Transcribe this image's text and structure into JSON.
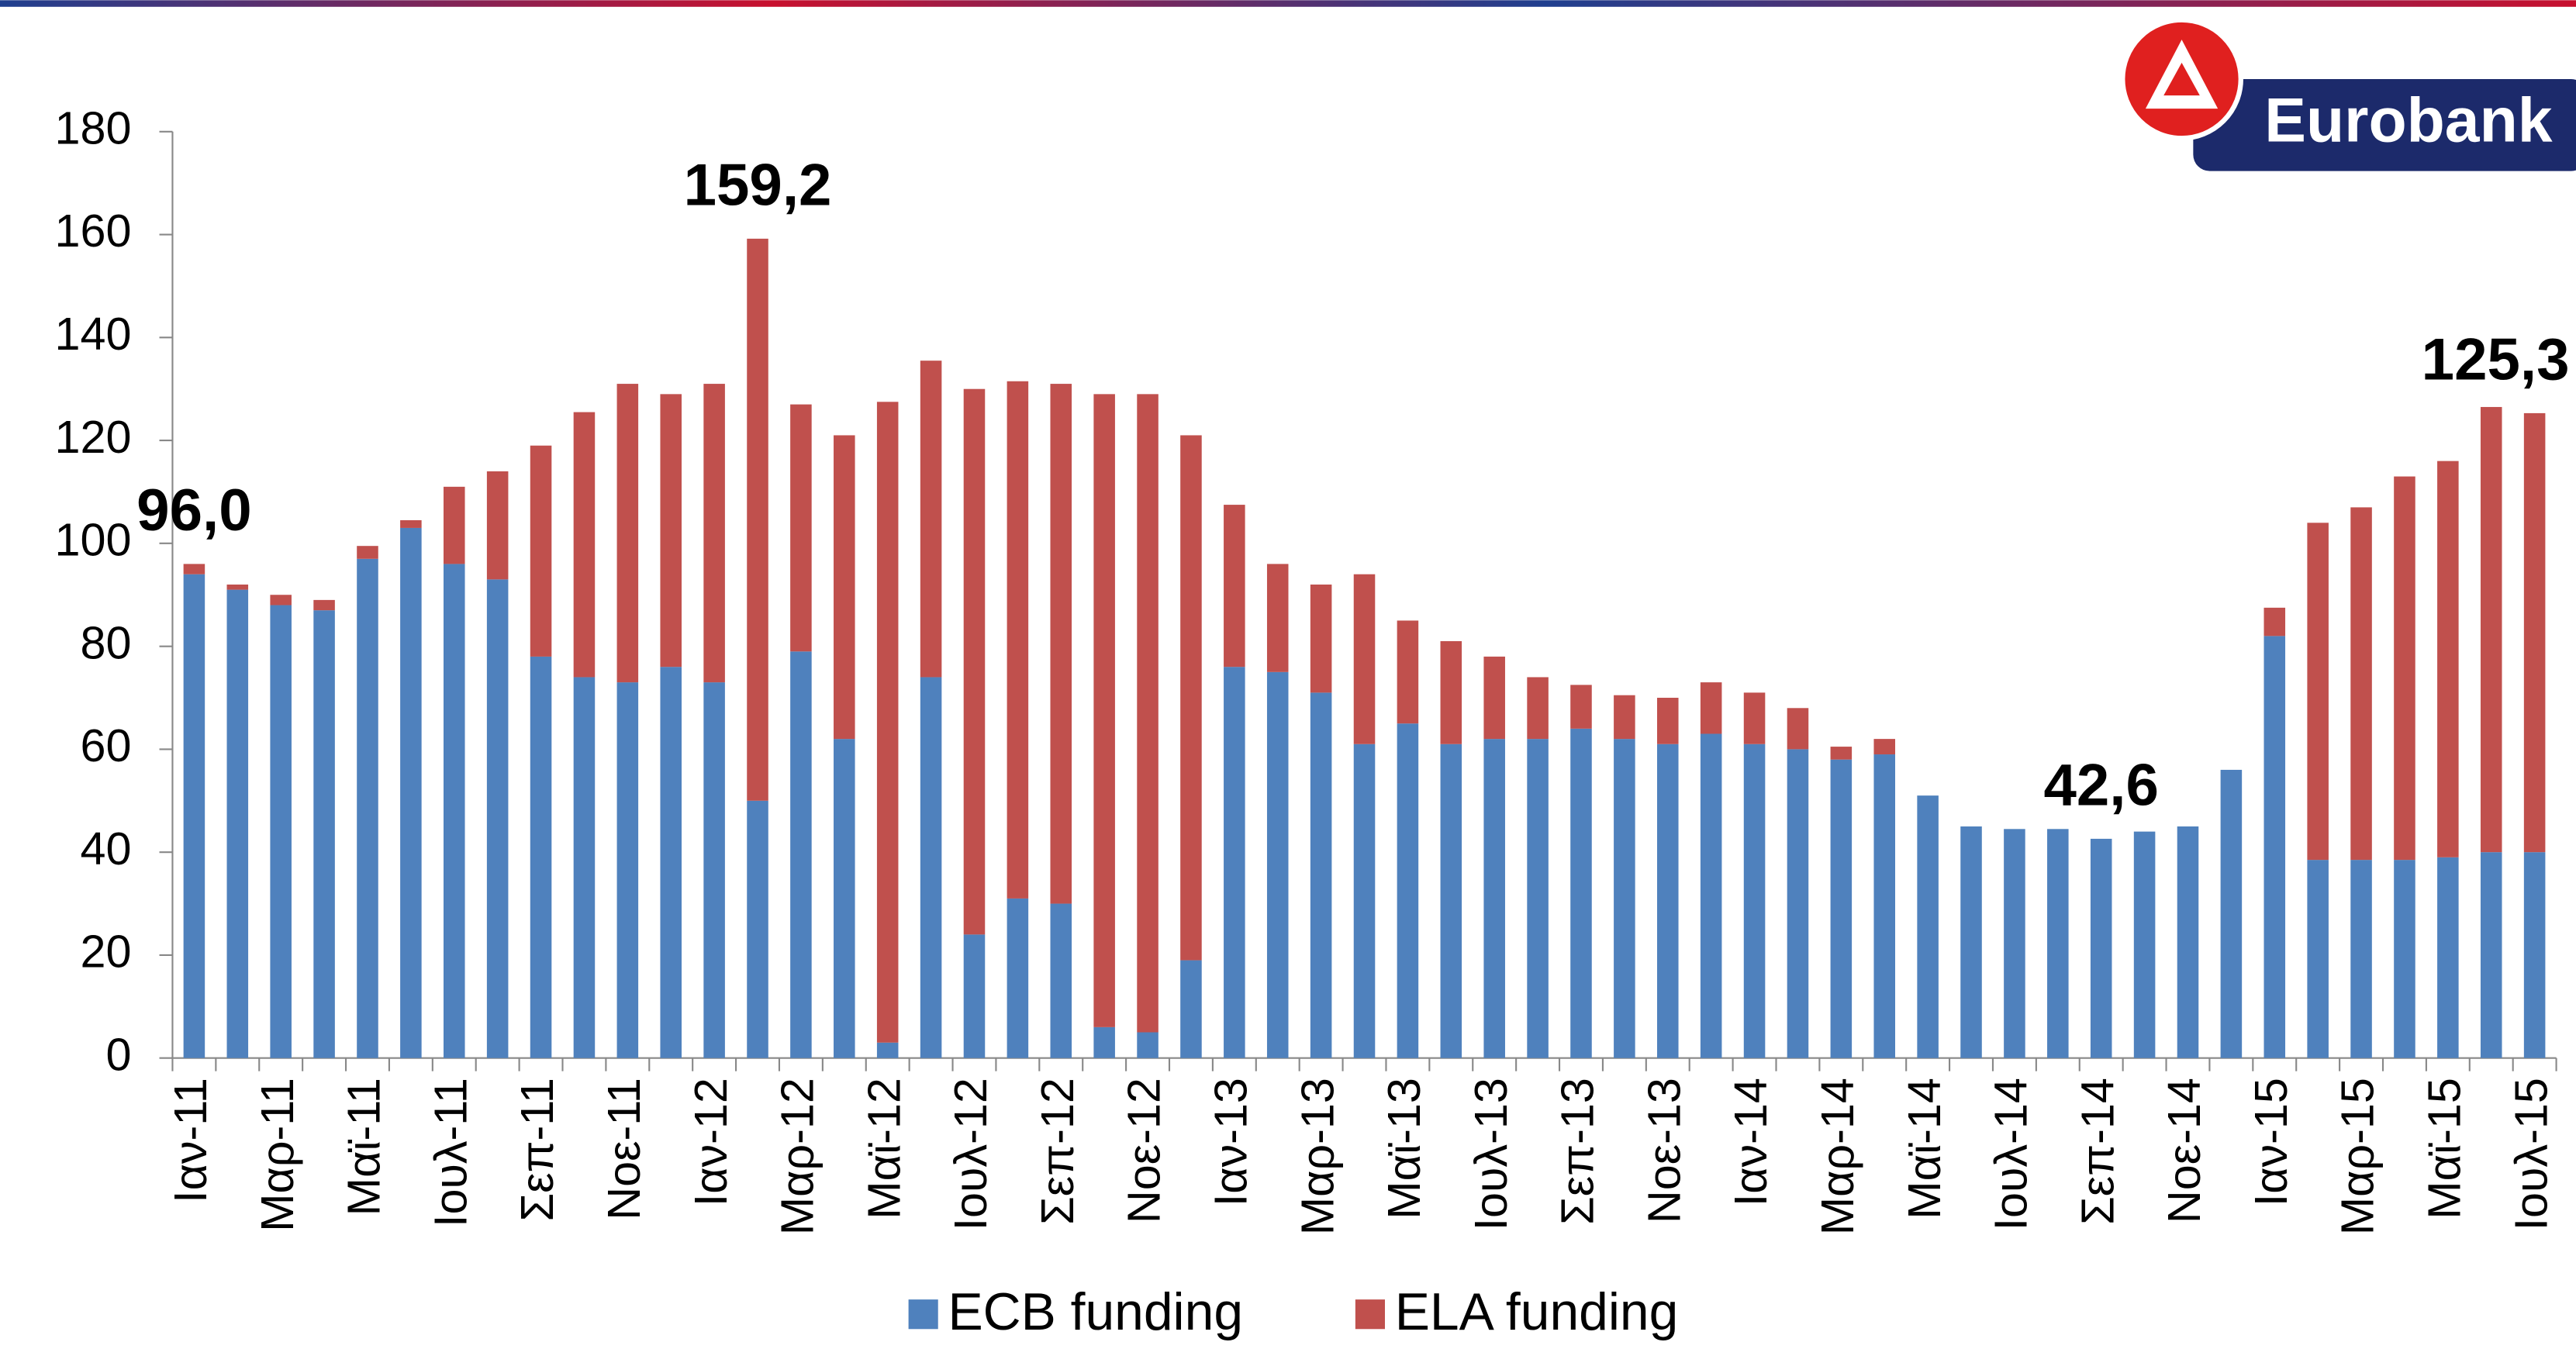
{
  "logo": {
    "text": "Eurobank"
  },
  "chart_data": {
    "type": "stacked_bar",
    "categories": [
      "Ιαν-11",
      null,
      "Μαρ-11",
      null,
      "Μαϊ-11",
      null,
      "Ιουλ-11",
      null,
      "Σεπ-11",
      null,
      "Νοε-11",
      null,
      "Ιαν-12",
      null,
      "Μαρ-12",
      null,
      "Μαϊ-12",
      null,
      "Ιουλ-12",
      null,
      "Σεπ-12",
      null,
      "Νοε-12",
      null,
      "Ιαν-13",
      null,
      "Μαρ-13",
      null,
      "Μαϊ-13",
      null,
      "Ιουλ-13",
      null,
      "Σεπ-13",
      null,
      "Νοε-13",
      null,
      "Ιαν-14",
      null,
      "Μαρ-14",
      null,
      "Μαϊ-14",
      null,
      "Ιουλ-14",
      null,
      "Σεπ-14",
      null,
      "Νοε-14",
      null,
      "Ιαν-15",
      null,
      "Μαρ-15",
      null,
      "Μαϊ-15",
      null,
      "Ιουλ-15"
    ],
    "series": [
      {
        "name": "ECB funding",
        "color": "#4f81bd",
        "values": [
          94,
          91,
          88,
          87,
          97,
          103,
          96,
          93,
          78,
          74,
          73,
          76,
          73,
          50,
          79,
          62,
          3,
          74,
          24,
          31,
          30,
          6,
          5,
          19,
          76,
          75,
          71,
          61,
          65,
          61,
          62,
          62,
          64,
          62,
          61,
          63,
          61,
          60,
          58,
          59,
          51,
          45,
          44.5,
          44.5,
          42.6,
          44,
          45,
          56,
          82,
          38.5,
          38.5,
          38.5,
          39,
          40,
          40
        ]
      },
      {
        "name": "ELA funding",
        "color": "#c0504d",
        "values": [
          2,
          1,
          2,
          2,
          2.5,
          1.5,
          15,
          21,
          41,
          51.5,
          58,
          53,
          58,
          109.2,
          48,
          59,
          124.5,
          61.5,
          106,
          100.5,
          101,
          123,
          124,
          102,
          31.5,
          21,
          21,
          33,
          20,
          20,
          16,
          12,
          8.5,
          8.5,
          9,
          10,
          10,
          8,
          2.5,
          3,
          0,
          0,
          0,
          0,
          0,
          0,
          0,
          0,
          5.5,
          65.5,
          68.5,
          74.5,
          77,
          86.5,
          85.3
        ]
      }
    ],
    "annotations": [
      {
        "value": 96.0,
        "label": "96,0"
      },
      {
        "value": 159.2,
        "label": "159,2"
      },
      {
        "value": 42.6,
        "label": "42,6"
      },
      {
        "value": 125.3,
        "label": "125,3"
      }
    ],
    "ylim": [
      0,
      180
    ],
    "yticks": [
      0,
      20,
      40,
      60,
      80,
      100,
      120,
      140,
      160,
      180
    ],
    "grid": false,
    "legend": "bottom"
  }
}
